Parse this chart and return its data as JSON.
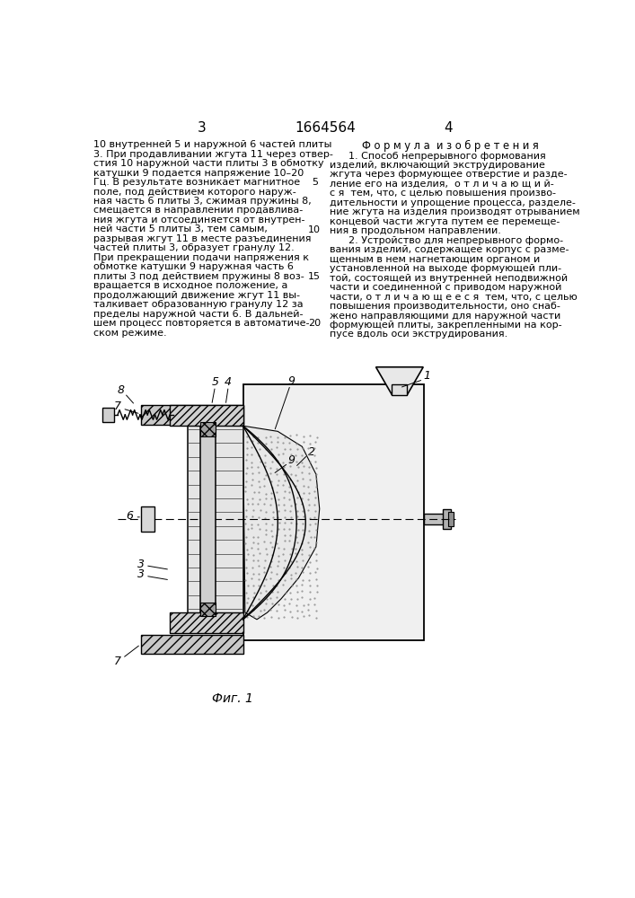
{
  "page_width": 7.07,
  "page_height": 10.0,
  "background_color": "#ffffff",
  "header_page_left": "3",
  "header_patent": "1664564",
  "header_page_right": "4",
  "left_col_text": [
    "10 внутренней 5 и наружной 6 частей плиты",
    "3. При продавливании жгута 11 через отвер-",
    "стия 10 наружной части плиты 3 в обмотку",
    "катушки 9 подается напряжение 10–20",
    "Гц. В результате возникает магнитное",
    "поле, под действием которого наруж-",
    "ная часть 6 плиты 3, сжимая пружины 8,",
    "смещается в направлении продавлива-",
    "ния жгута и отсоединяется от внутрен-",
    "ней части 5 плиты 3, тем самым,",
    "разрывая жгут 11 в месте разъединения",
    "частей плиты 3, образует гранулу 12.",
    "При прекращении подачи напряжения к",
    "обмотке катушки 9 наружная часть 6",
    "плиты 3 под действием пружины 8 воз-",
    "вращается в исходное положение, а",
    "продолжающий движение жгут 11 вы-",
    "талкивает образованную гранулу 12 за",
    "пределы наружной части 6. В дальней-",
    "шем процесс повторяется в автоматиче-",
    "ском режиме."
  ],
  "line_numbers": {
    "5": 5,
    "10": 10,
    "15": 15,
    "20": 20
  },
  "right_col_header": "Ф о р м у л а  и з о б р е т е н и я",
  "right_col_text": [
    "      1. Способ непрерывного формования",
    "изделий, включающий экструдирование",
    "жгута через формующее отверстие и разде-",
    "ление его на изделия,  о т л и ч а ю щ и й-",
    "с я  тем, что, с целью повышения произво-",
    "дительности и упрощение процесса, разделе-",
    "ние жгута на изделия производят отрыванием",
    "концевой части жгута путем ее перемеще-",
    "ния в продольном направлении.",
    "      2. Устройство для непрерывного формо-",
    "вания изделий, содержащее корпус с разме-",
    "щенным в нем нагнетающим органом и",
    "установленной на выходе формующей пли-",
    "той, состоящей из внутренней неподвижной",
    "части и соединенной с приводом наружной",
    "части, о т л и ч а ю щ е е с я  тем, что, с целью",
    "повышения производительности, оно снаб-",
    "жено направляющими для наружной части",
    "формующей плиты, закрепленными на кор-",
    "пусе вдоль оси экструдирования."
  ],
  "fig_caption": "Фиг. 1",
  "text_color": "#000000",
  "line_color": "#000000",
  "hatch_color": "#000000"
}
